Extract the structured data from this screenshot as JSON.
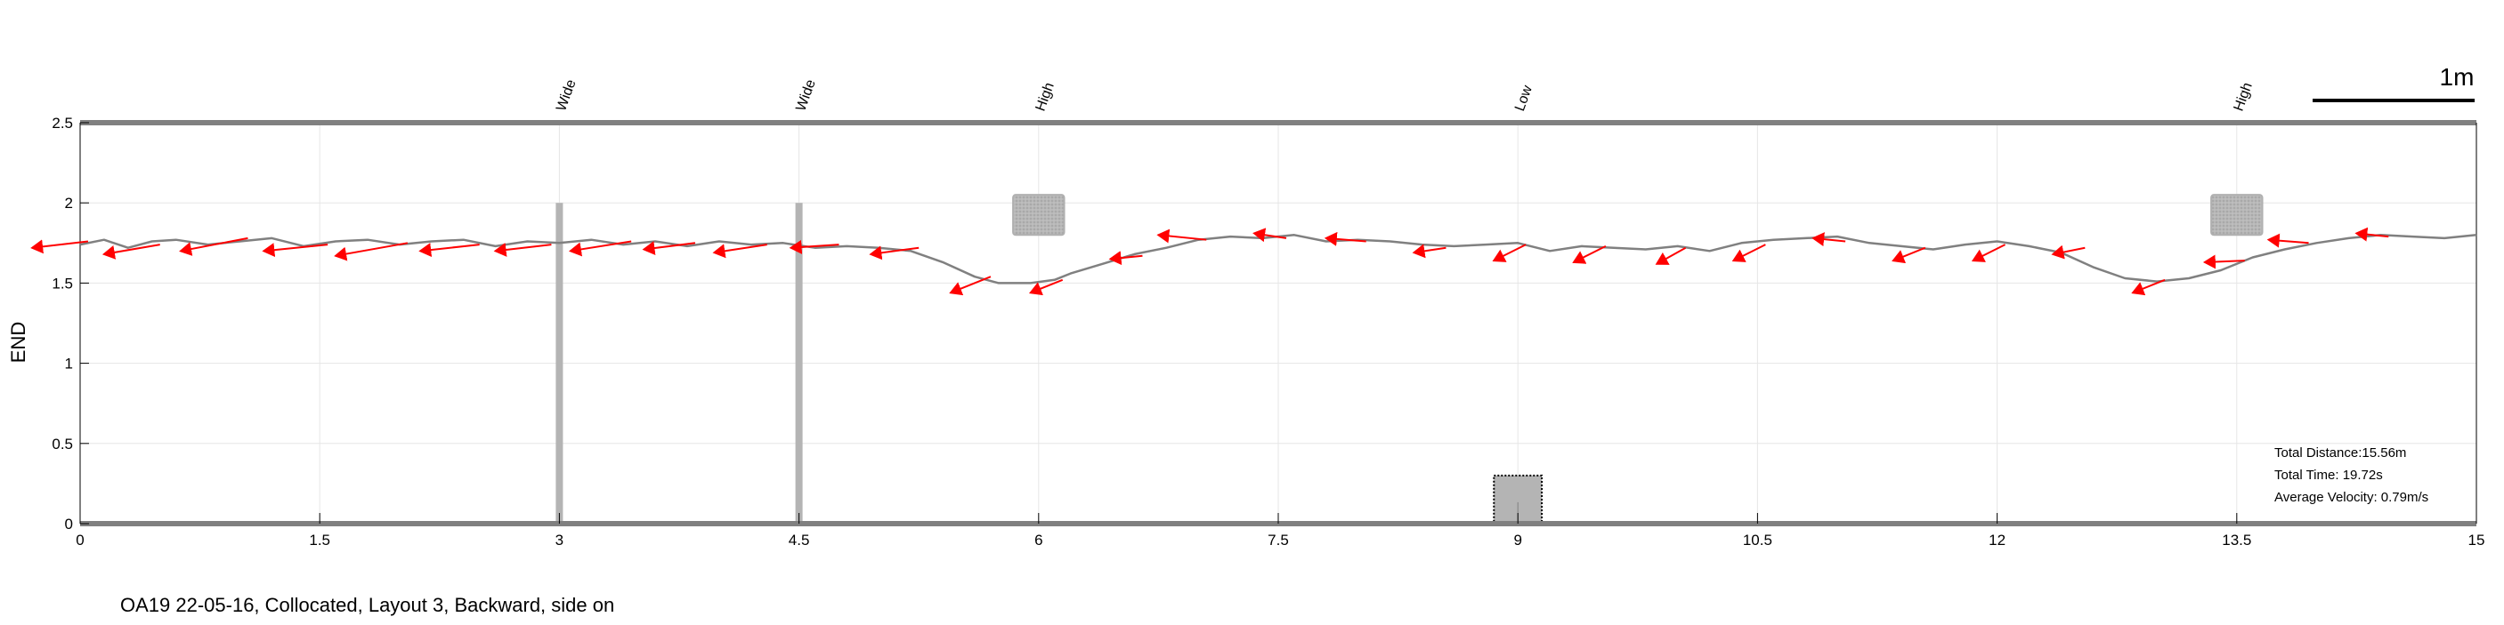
{
  "chart_data": {
    "type": "line",
    "xlim": [
      0,
      15
    ],
    "ylim": [
      0,
      2.5
    ],
    "x_ticks": [
      "0",
      "1.5",
      "3",
      "4.5",
      "6",
      "7.5",
      "9",
      "10.5",
      "12",
      "13.5",
      "15"
    ],
    "x_tick_values": [
      0,
      1.5,
      3,
      4.5,
      6,
      7.5,
      9,
      10.5,
      12,
      13.5,
      15
    ],
    "y_ticks": [
      "0",
      "0.5",
      "1",
      "1.5",
      "2",
      "2.5"
    ],
    "y_tick_values": [
      0,
      0.5,
      1,
      1.5,
      2,
      2.5
    ],
    "xlabel": "",
    "ylabel": "END",
    "grid": true,
    "colors": {
      "path": "#808080",
      "arrow": "#ff0000",
      "obstacle": "#b4b4b4",
      "frame": "#808080"
    },
    "scale_bar_label": "1m",
    "trajectory": {
      "x": [
        0.0,
        0.15,
        0.3,
        0.45,
        0.6,
        0.8,
        1.0,
        1.2,
        1.4,
        1.6,
        1.8,
        2.0,
        2.2,
        2.4,
        2.6,
        2.8,
        3.0,
        3.2,
        3.4,
        3.6,
        3.8,
        4.0,
        4.2,
        4.4,
        4.6,
        4.8,
        5.0,
        5.2,
        5.4,
        5.6,
        5.75,
        5.85,
        5.95,
        6.1,
        6.2,
        6.4,
        6.6,
        6.8,
        7.0,
        7.2,
        7.4,
        7.6,
        7.8,
        8.0,
        8.2,
        8.4,
        8.6,
        8.8,
        9.0,
        9.2,
        9.4,
        9.6,
        9.8,
        10.0,
        10.2,
        10.4,
        10.6,
        10.8,
        11.0,
        11.2,
        11.4,
        11.6,
        11.8,
        12.0,
        12.2,
        12.4,
        12.6,
        12.8,
        13.0,
        13.2,
        13.4,
        13.6,
        13.8,
        14.0,
        14.2,
        14.4,
        14.6,
        14.8,
        15.0
      ],
      "y": [
        1.74,
        1.77,
        1.72,
        1.76,
        1.77,
        1.74,
        1.76,
        1.78,
        1.73,
        1.76,
        1.77,
        1.74,
        1.76,
        1.77,
        1.73,
        1.76,
        1.75,
        1.77,
        1.74,
        1.76,
        1.73,
        1.76,
        1.74,
        1.75,
        1.72,
        1.73,
        1.72,
        1.7,
        1.63,
        1.54,
        1.5,
        1.5,
        1.5,
        1.52,
        1.56,
        1.62,
        1.68,
        1.72,
        1.77,
        1.79,
        1.78,
        1.8,
        1.76,
        1.77,
        1.76,
        1.74,
        1.73,
        1.74,
        1.75,
        1.7,
        1.73,
        1.72,
        1.71,
        1.73,
        1.7,
        1.75,
        1.77,
        1.78,
        1.79,
        1.75,
        1.73,
        1.71,
        1.74,
        1.76,
        1.73,
        1.69,
        1.6,
        1.53,
        1.51,
        1.53,
        1.58,
        1.66,
        1.71,
        1.75,
        1.78,
        1.8,
        1.79,
        1.78,
        1.8
      ]
    },
    "arrows": [
      {
        "x": 0.05,
        "y": 1.76,
        "dx": -0.35,
        "dy": -0.04
      },
      {
        "x": 0.5,
        "y": 1.74,
        "dx": -0.35,
        "dy": -0.06
      },
      {
        "x": 1.05,
        "y": 1.78,
        "dx": -0.42,
        "dy": -0.08
      },
      {
        "x": 1.55,
        "y": 1.74,
        "dx": -0.4,
        "dy": -0.04
      },
      {
        "x": 2.05,
        "y": 1.75,
        "dx": -0.45,
        "dy": -0.08
      },
      {
        "x": 2.5,
        "y": 1.74,
        "dx": -0.37,
        "dy": -0.04
      },
      {
        "x": 2.95,
        "y": 1.74,
        "dx": -0.35,
        "dy": -0.04
      },
      {
        "x": 3.45,
        "y": 1.76,
        "dx": -0.38,
        "dy": -0.06
      },
      {
        "x": 3.85,
        "y": 1.75,
        "dx": -0.32,
        "dy": -0.04
      },
      {
        "x": 4.3,
        "y": 1.74,
        "dx": -0.33,
        "dy": -0.05
      },
      {
        "x": 4.75,
        "y": 1.74,
        "dx": -0.3,
        "dy": -0.02
      },
      {
        "x": 5.25,
        "y": 1.72,
        "dx": -0.3,
        "dy": -0.04
      },
      {
        "x": 5.7,
        "y": 1.54,
        "dx": -0.25,
        "dy": -0.1
      },
      {
        "x": 6.15,
        "y": 1.52,
        "dx": -0.2,
        "dy": -0.08
      },
      {
        "x": 6.65,
        "y": 1.67,
        "dx": -0.2,
        "dy": -0.02
      },
      {
        "x": 7.05,
        "y": 1.77,
        "dx": -0.3,
        "dy": 0.03
      },
      {
        "x": 7.55,
        "y": 1.78,
        "dx": -0.2,
        "dy": 0.03
      },
      {
        "x": 8.05,
        "y": 1.76,
        "dx": -0.25,
        "dy": 0.02
      },
      {
        "x": 8.55,
        "y": 1.72,
        "dx": -0.2,
        "dy": -0.03
      },
      {
        "x": 9.05,
        "y": 1.74,
        "dx": -0.2,
        "dy": -0.1
      },
      {
        "x": 9.55,
        "y": 1.73,
        "dx": -0.2,
        "dy": -0.1
      },
      {
        "x": 10.05,
        "y": 1.72,
        "dx": -0.18,
        "dy": -0.1
      },
      {
        "x": 10.55,
        "y": 1.74,
        "dx": -0.2,
        "dy": -0.1
      },
      {
        "x": 11.05,
        "y": 1.76,
        "dx": -0.2,
        "dy": 0.02
      },
      {
        "x": 11.55,
        "y": 1.72,
        "dx": -0.2,
        "dy": -0.08
      },
      {
        "x": 12.05,
        "y": 1.74,
        "dx": -0.2,
        "dy": -0.1
      },
      {
        "x": 12.55,
        "y": 1.72,
        "dx": -0.2,
        "dy": -0.04
      },
      {
        "x": 13.05,
        "y": 1.52,
        "dx": -0.2,
        "dy": -0.08
      },
      {
        "x": 13.55,
        "y": 1.64,
        "dx": -0.25,
        "dy": -0.01
      },
      {
        "x": 13.95,
        "y": 1.75,
        "dx": -0.25,
        "dy": 0.02
      },
      {
        "x": 14.45,
        "y": 1.79,
        "dx": -0.2,
        "dy": 0.02
      }
    ],
    "obstacles": [
      {
        "label": "Wide",
        "x": 3.0,
        "kind": "post",
        "y_from": 0,
        "y_to": 2.0
      },
      {
        "label": "Wide",
        "x": 4.5,
        "kind": "post",
        "y_from": 0,
        "y_to": 2.0
      },
      {
        "label": "High",
        "x": 6.0,
        "kind": "block",
        "y_from": 1.8,
        "y_to": 2.05,
        "half_width": 0.16
      },
      {
        "label": "Low",
        "x": 9.0,
        "kind": "floor-block",
        "y_from": 0,
        "y_to": 0.3,
        "half_width": 0.15
      },
      {
        "label": "High",
        "x": 13.5,
        "kind": "block",
        "y_from": 1.8,
        "y_to": 2.05,
        "half_width": 0.16
      }
    ],
    "stats": [
      "Total Distance:15.56m",
      "Total Time: 19.72s",
      "Average Velocity: 0.79m/s"
    ]
  },
  "caption": "OA19 22-05-16, Collocated, Layout 3, Backward, side on"
}
